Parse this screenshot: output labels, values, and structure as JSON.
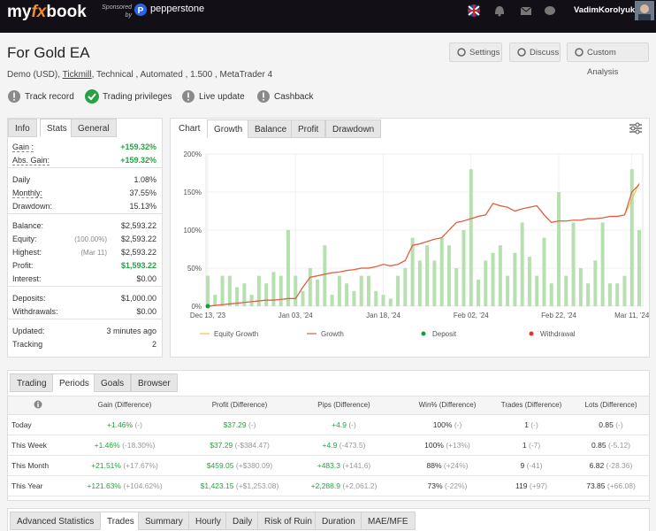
{
  "header": {
    "logo_my": "my",
    "logo_fx": "fx",
    "logo_book": "book",
    "sponsored": "Sponsored by",
    "sponsor": "pepperstone",
    "username": "VadimKorolyuk"
  },
  "page": {
    "title": "For Gold EA",
    "buttons": [
      "Settings",
      "Discuss",
      "Custom Analysis"
    ],
    "meta": [
      "Demo (USD),",
      "Tickmill",
      ", Technical , Automated , 1.500 , MetaTrader 4"
    ],
    "badges": [
      {
        "label": "Track record",
        "on": false
      },
      {
        "label": "Trading privileges",
        "on": true
      },
      {
        "label": "Live update",
        "on": false
      },
      {
        "label": "Cashback",
        "on": false
      }
    ]
  },
  "stats": {
    "tabs": [
      "Info",
      "Stats",
      "General"
    ],
    "active": 1,
    "groups": [
      [
        {
          "label": "Gain :",
          "value": "+159.32%",
          "color": "#27a243"
        },
        {
          "label": "Abs. Gain:",
          "value": "+159.32%",
          "color": "#27a243"
        }
      ],
      [
        {
          "label": "Daily",
          "value": "1.08%"
        },
        {
          "label": "Monthly:",
          "value": "37.55%"
        },
        {
          "label": "Drawdown:",
          "value": "15.13%"
        }
      ],
      [
        {
          "label": "Balance:",
          "value": "$2,593.22"
        },
        {
          "label": "Equity:",
          "note": "(100.00%)",
          "value": "$2,593.22"
        },
        {
          "label": "Highest:",
          "note": "(Mar 11)",
          "value": "$2,593.22"
        },
        {
          "label": "Profit:",
          "value": "$1,593.22",
          "color": "#27a243"
        },
        {
          "label": "Interest:",
          "value": "$0.00"
        }
      ],
      [
        {
          "label": "Deposits:",
          "value": "$1,000.00"
        },
        {
          "label": "Withdrawals:",
          "value": "$0.00"
        }
      ],
      [
        {
          "label": "Updated:",
          "value": "3 minutes ago"
        },
        {
          "label": "Tracking",
          "value": "2"
        }
      ]
    ]
  },
  "chart_panel": {
    "tabs": [
      "Chart",
      "Growth",
      "Balance",
      "Profit",
      "Drawdown"
    ],
    "active": 1
  },
  "chart_data": {
    "type": "bar_line",
    "categories": [
      "Dec 13, '23",
      null,
      null,
      null,
      null,
      null,
      null,
      null,
      null,
      null,
      null,
      null,
      "Jan 03, '24",
      null,
      null,
      null,
      null,
      null,
      null,
      null,
      null,
      null,
      null,
      null,
      "Jan 18, '24",
      null,
      null,
      null,
      null,
      null,
      null,
      null,
      null,
      null,
      null,
      null,
      "Feb 02, '24",
      null,
      null,
      null,
      null,
      null,
      null,
      null,
      null,
      null,
      null,
      null,
      "Feb 22, '24",
      null,
      null,
      null,
      null,
      null,
      null,
      null,
      null,
      null,
      "Mar 11, '24",
      null
    ],
    "ylim": [
      0,
      200
    ],
    "yticks": [
      {
        "value": 0,
        "label": "0%"
      },
      {
        "value": 50,
        "label": "50%"
      },
      {
        "value": 100,
        "label": "100%"
      },
      {
        "value": 150,
        "label": "150%"
      },
      {
        "value": 200,
        "label": "200%"
      }
    ],
    "grid": true,
    "bars": {
      "color": "#b7e0b0",
      "values": [
        40,
        15,
        40,
        40,
        25,
        30,
        15,
        40,
        30,
        45,
        40,
        100,
        40,
        20,
        50,
        35,
        80,
        15,
        40,
        30,
        20,
        40,
        40,
        20,
        15,
        10,
        40,
        50,
        90,
        60,
        80,
        60,
        90,
        80,
        50,
        100,
        180,
        35,
        60,
        70,
        80,
        40,
        70,
        110,
        65,
        40,
        90,
        30,
        150,
        40,
        110,
        50,
        30,
        60,
        110,
        30,
        30,
        40,
        180,
        100
      ]
    },
    "series": [
      {
        "name": "Equity Growth",
        "color": "#f2c14e",
        "values": [
          0,
          1,
          2,
          3,
          4,
          5,
          6,
          7,
          8,
          8,
          9,
          10,
          10,
          25,
          38,
          40,
          42,
          44,
          45,
          47,
          48,
          50,
          50,
          52,
          55,
          53,
          55,
          60,
          80,
          82,
          85,
          88,
          90,
          100,
          110,
          112,
          115,
          118,
          120,
          135,
          132,
          130,
          125,
          128,
          130,
          132,
          120,
          110,
          112,
          112,
          113,
          113,
          115,
          115,
          116,
          118,
          118,
          120,
          140,
          162
        ]
      },
      {
        "name": "Growth",
        "color": "#e05a47",
        "values": [
          0,
          1,
          2,
          3,
          4,
          5,
          6,
          7,
          8,
          8,
          9,
          10,
          10,
          25,
          38,
          40,
          42,
          44,
          45,
          47,
          48,
          50,
          50,
          52,
          55,
          53,
          55,
          60,
          80,
          82,
          85,
          88,
          90,
          100,
          110,
          112,
          115,
          118,
          120,
          135,
          132,
          130,
          125,
          128,
          130,
          132,
          120,
          110,
          112,
          112,
          113,
          113,
          115,
          115,
          116,
          118,
          118,
          120,
          150,
          160
        ]
      },
      {
        "name": "Deposit",
        "color": "#1a9c3e",
        "values": [
          0,
          null,
          null,
          null,
          null,
          null,
          null,
          null,
          null,
          null,
          null,
          null,
          null,
          null,
          null,
          null,
          null,
          null,
          null,
          null,
          null,
          null,
          null,
          null,
          null,
          null,
          null,
          null,
          null,
          null,
          null,
          null,
          null,
          null,
          null,
          null,
          null,
          null,
          null,
          null,
          null,
          null,
          null,
          null,
          null,
          null,
          null,
          null,
          null,
          null,
          null,
          null,
          null,
          null,
          null,
          null,
          null,
          null,
          null,
          null
        ]
      },
      {
        "name": "Withdrawal",
        "color": "#e0362b",
        "values": [
          null,
          null,
          null,
          null,
          null,
          null,
          null,
          null,
          null,
          null,
          null,
          null,
          null,
          null,
          null,
          null,
          null,
          null,
          null,
          null,
          null,
          null,
          null,
          null,
          null,
          null,
          null,
          null,
          null,
          null,
          null,
          null,
          null,
          null,
          null,
          null,
          null,
          null,
          null,
          null,
          null,
          null,
          null,
          null,
          null,
          null,
          null,
          null,
          null,
          null,
          null,
          null,
          null,
          null,
          null,
          null,
          null,
          null,
          null,
          null
        ]
      }
    ]
  },
  "periods": {
    "tabs": [
      "Trading",
      "Periods",
      "Goals",
      "Browser"
    ],
    "active": 1,
    "columns": [
      {
        "title": "Gain (Difference)",
        "color": "#27a243"
      },
      {
        "title": "Profit (Difference)",
        "color": "#27a243"
      },
      {
        "title": "Pips (Difference)",
        "color": "#27a243"
      },
      {
        "title": "Win% (Difference)",
        "color": "#333333"
      },
      {
        "title": "Trades (Difference)",
        "color": "#333333"
      },
      {
        "title": "Lots (Difference)",
        "color": "#333333"
      }
    ],
    "rows": [
      {
        "label": "Today",
        "cells": [
          [
            "+1.46%",
            "(-)"
          ],
          [
            "$37.29",
            "(-)"
          ],
          [
            "+4.9",
            "(-)"
          ],
          [
            "100%",
            "(-)"
          ],
          [
            "1",
            "(-)"
          ],
          [
            "0.85",
            "(-)"
          ]
        ]
      },
      {
        "label": "This Week",
        "cells": [
          [
            "+1.46%",
            "(-18.30%)"
          ],
          [
            "$37.29",
            "(-$384.47)"
          ],
          [
            "+4.9",
            "(-473.5)"
          ],
          [
            "100%",
            "(+13%)"
          ],
          [
            "1",
            "(-7)"
          ],
          [
            "0.85",
            "(-5.12)"
          ]
        ]
      },
      {
        "label": "This Month",
        "cells": [
          [
            "+21.51%",
            "(+17.67%)"
          ],
          [
            "$459.05",
            "(+$380.09)"
          ],
          [
            "+483.3",
            "(+141.6)"
          ],
          [
            "88%",
            "(+24%)"
          ],
          [
            "9",
            "(-41)"
          ],
          [
            "6.82",
            "(-28.36)"
          ]
        ]
      },
      {
        "label": "This Year",
        "cells": [
          [
            "+121.63%",
            "(+104.62%)"
          ],
          [
            "$1,423.15",
            "(+$1,253.08)"
          ],
          [
            "+2,288.9",
            "(+2,061.2)"
          ],
          [
            "73%",
            "(-22%)"
          ],
          [
            "119",
            "(+97)"
          ],
          [
            "73.85",
            "(+66.08)"
          ]
        ]
      }
    ]
  },
  "bottom_tabs": {
    "tabs": [
      "Advanced Statistics",
      "Trades",
      "Summary",
      "Hourly",
      "Daily",
      "Risk of Ruin",
      "Duration",
      "MAE/MFE"
    ],
    "active": 1
  }
}
